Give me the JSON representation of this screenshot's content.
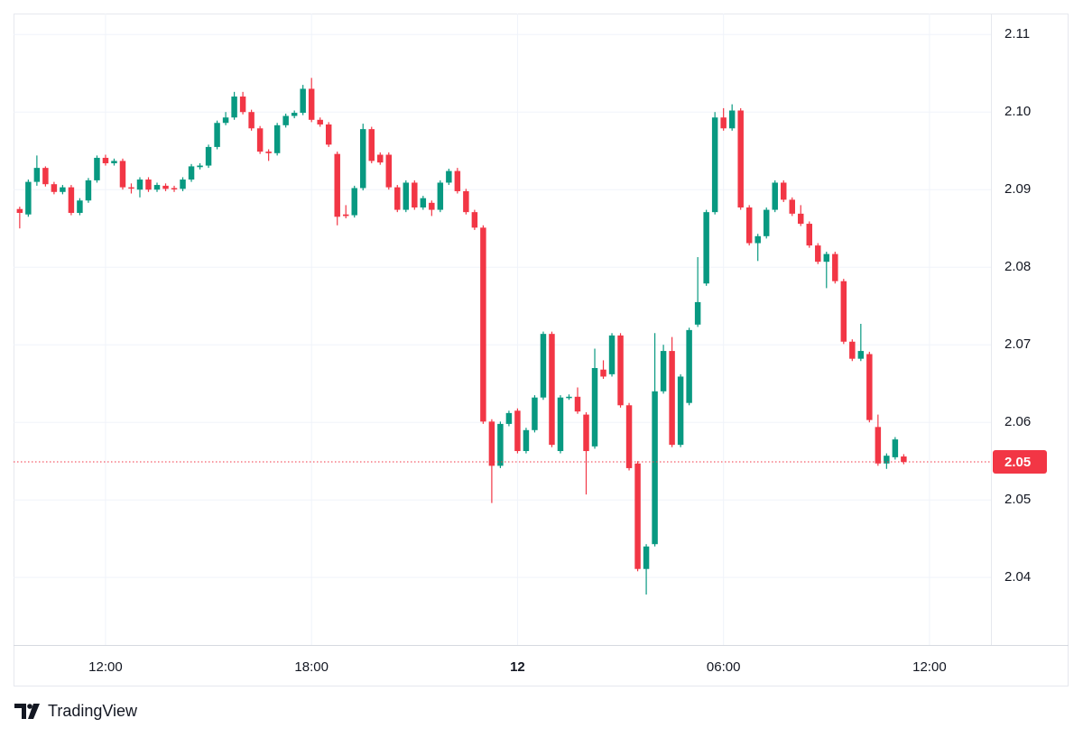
{
  "chart_data": {
    "type": "candlestick",
    "attribution": "TradingView",
    "up_color": "#089981",
    "down_color": "#f23645",
    "grid": true,
    "xlim": [
      9.32,
      37.79
    ],
    "xticks": [
      {
        "value": 12,
        "label": "12:00"
      },
      {
        "value": 18,
        "label": "18:00"
      },
      {
        "value": 24,
        "label": "12"
      },
      {
        "value": 30,
        "label": "06:00"
      },
      {
        "value": 36,
        "label": "12:00"
      }
    ],
    "ylim": [
      2.0313,
      2.1127
    ],
    "yticks": [
      2.11,
      {
        "value": 2.1,
        "label": "2.10"
      },
      2.09,
      2.08,
      2.07,
      2.06,
      2.05,
      2.04
    ],
    "last_price": {
      "value": 2.0549,
      "label": "2.05"
    },
    "x": [
      9.5,
      9.75,
      10,
      10.25,
      10.5,
      10.75,
      11,
      11.25,
      11.5,
      11.75,
      12,
      12.25,
      12.5,
      12.75,
      13,
      13.25,
      13.5,
      13.75,
      14,
      14.25,
      14.5,
      14.75,
      15,
      15.25,
      15.5,
      15.75,
      16,
      16.25,
      16.5,
      16.75,
      17,
      17.25,
      17.5,
      17.75,
      18,
      18.25,
      18.5,
      18.75,
      19,
      19.25,
      19.5,
      19.75,
      20,
      20.25,
      20.5,
      20.75,
      21,
      21.25,
      21.5,
      21.75,
      22,
      22.25,
      22.5,
      22.75,
      23,
      23.25,
      23.5,
      23.75,
      24,
      24.25,
      24.5,
      24.75,
      25,
      25.25,
      25.5,
      25.75,
      26,
      26.25,
      26.5,
      26.75,
      27,
      27.25,
      27.5,
      27.75,
      28,
      28.25,
      28.5,
      28.75,
      29,
      29.25,
      29.5,
      29.75,
      30,
      30.25,
      30.5,
      30.75,
      31,
      31.25,
      31.5,
      31.75,
      32,
      32.25,
      32.5,
      32.75,
      33,
      33.25,
      33.5,
      33.75,
      34,
      34.25,
      34.5,
      34.75,
      35,
      35.25
    ],
    "open": [
      2.0875,
      2.0868,
      2.091,
      2.0928,
      2.0907,
      2.0897,
      2.0903,
      2.087,
      2.0886,
      2.0912,
      2.0941,
      2.0934,
      2.0937,
      2.0903,
      2.09,
      2.0913,
      2.09,
      2.0905,
      2.0902,
      2.0901,
      2.0913,
      2.0929,
      2.0931,
      2.0955,
      2.0986,
      2.0993,
      2.102,
      2.1,
      2.0979,
      2.0949,
      2.0947,
      2.0983,
      2.0995,
      2.0999,
      2.103,
      2.099,
      2.0984,
      2.0946,
      2.0868,
      2.0867,
      2.0902,
      2.0978,
      2.0945,
      2.0945,
      2.0903,
      2.0874,
      2.0909,
      2.0877,
      2.0883,
      2.0874,
      2.0909,
      2.0924,
      2.0898,
      2.0871,
      2.0851,
      2.0601,
      2.0544,
      2.0598,
      2.0615,
      2.0563,
      2.059,
      2.0632,
      2.0714,
      2.0563,
      2.0632,
      2.0633,
      2.061,
      2.0569,
      2.0668,
      2.0662,
      2.0712,
      2.0622,
      2.0547,
      2.0411,
      2.0443,
      2.064,
      2.0692,
      2.0571,
      2.0625,
      2.0726,
      2.0779,
      2.0871,
      2.0993,
      2.0979,
      2.1002,
      2.0877,
      2.0831,
      2.084,
      2.0874,
      2.0909,
      2.0887,
      2.0869,
      2.0856,
      2.0828,
      2.0807,
      2.0817,
      2.0782,
      2.0704,
      2.0682,
      2.0688,
      2.0594,
      2.0547,
      2.0555,
      2.0556
    ],
    "high": [
      2.0878,
      2.0913,
      2.0944,
      2.093,
      2.091,
      2.0906,
      2.0906,
      2.0889,
      2.0915,
      2.0944,
      2.0945,
      2.094,
      2.094,
      2.0908,
      2.0916,
      2.0916,
      2.0909,
      2.0908,
      2.0905,
      2.0916,
      2.0933,
      2.0934,
      2.0958,
      2.0989,
      2.1,
      2.1026,
      2.1026,
      2.1003,
      2.0982,
      2.0952,
      2.0986,
      2.0998,
      2.1002,
      2.1035,
      2.1044,
      2.0993,
      2.0987,
      2.0949,
      2.088,
      2.0905,
      2.0985,
      2.0981,
      2.0948,
      2.0948,
      2.0906,
      2.0912,
      2.0912,
      2.0892,
      2.0886,
      2.0912,
      2.0927,
      2.0928,
      2.0901,
      2.0874,
      2.0854,
      2.0604,
      2.0601,
      2.0615,
      2.0618,
      2.0593,
      2.0635,
      2.0717,
      2.0717,
      2.0635,
      2.0636,
      2.0645,
      2.0613,
      2.0695,
      2.068,
      2.0715,
      2.0715,
      2.0625,
      2.055,
      2.0443,
      2.0715,
      2.07,
      2.071,
      2.0662,
      2.0722,
      2.0813,
      2.0874,
      2.1,
      2.1005,
      2.101,
      2.1005,
      2.088,
      2.0843,
      2.0877,
      2.0912,
      2.0912,
      2.089,
      2.088,
      2.0859,
      2.0831,
      2.082,
      2.082,
      2.0785,
      2.0707,
      2.0727,
      2.0691,
      2.061,
      2.056,
      2.0581,
      2.0559
    ],
    "low": [
      2.085,
      2.0865,
      2.0905,
      2.0904,
      2.0894,
      2.0894,
      2.0867,
      2.0867,
      2.0883,
      2.0909,
      2.0931,
      2.0931,
      2.09,
      2.0895,
      2.089,
      2.0897,
      2.0897,
      2.0898,
      2.0897,
      2.0898,
      2.091,
      2.0926,
      2.0928,
      2.0952,
      2.0983,
      2.099,
      2.0997,
      2.0976,
      2.0946,
      2.0937,
      2.0944,
      2.098,
      2.0992,
      2.0996,
      2.0987,
      2.0981,
      2.0955,
      2.0854,
      2.0863,
      2.0864,
      2.0899,
      2.0934,
      2.0932,
      2.09,
      2.0871,
      2.0871,
      2.0874,
      2.0874,
      2.0866,
      2.0871,
      2.0906,
      2.0895,
      2.0868,
      2.0848,
      2.0598,
      2.0496,
      2.0541,
      2.0595,
      2.056,
      2.056,
      2.0587,
      2.0629,
      2.0568,
      2.056,
      2.0629,
      2.0611,
      2.0507,
      2.0566,
      2.0656,
      2.0659,
      2.0619,
      2.0538,
      2.0408,
      2.0378,
      2.044,
      2.0637,
      2.0568,
      2.0568,
      2.0622,
      2.0723,
      2.0776,
      2.0868,
      2.0976,
      2.0976,
      2.0874,
      2.0828,
      2.0808,
      2.0837,
      2.0871,
      2.0884,
      2.0866,
      2.0853,
      2.0825,
      2.0804,
      2.0773,
      2.0779,
      2.0701,
      2.0679,
      2.0679,
      2.06,
      2.0544,
      2.054,
      2.0552,
      2.0546
    ],
    "close": [
      2.087,
      2.091,
      2.0928,
      2.0907,
      2.0897,
      2.0903,
      2.087,
      2.0886,
      2.0912,
      2.0941,
      2.0934,
      2.0937,
      2.0903,
      2.0902,
      2.0913,
      2.09,
      2.0906,
      2.0901,
      2.0901,
      2.0913,
      2.093,
      2.0931,
      2.0955,
      2.0986,
      2.0993,
      2.102,
      2.1,
      2.0979,
      2.0949,
      2.0947,
      2.0983,
      2.0995,
      2.0999,
      2.103,
      2.099,
      2.0984,
      2.0958,
      2.0865,
      2.0866,
      2.0902,
      2.0978,
      2.0937,
      2.0935,
      2.0903,
      2.0874,
      2.0909,
      2.0877,
      2.0889,
      2.0874,
      2.0909,
      2.0924,
      2.0898,
      2.0871,
      2.0851,
      2.0601,
      2.0544,
      2.0598,
      2.0612,
      2.0563,
      2.059,
      2.0632,
      2.0714,
      2.0571,
      2.0632,
      2.0633,
      2.0614,
      2.0563,
      2.067,
      2.0659,
      2.0712,
      2.0622,
      2.0541,
      2.0411,
      2.044,
      2.064,
      2.0692,
      2.0571,
      2.0659,
      2.0719,
      2.0755,
      2.0871,
      2.0993,
      2.0979,
      2.1002,
      2.0877,
      2.0831,
      2.084,
      2.0874,
      2.0909,
      2.0887,
      2.0869,
      2.0856,
      2.0828,
      2.0807,
      2.0817,
      2.0782,
      2.0704,
      2.0682,
      2.0692,
      2.0603,
      2.0547,
      2.0557,
      2.0578,
      2.0549
    ]
  }
}
